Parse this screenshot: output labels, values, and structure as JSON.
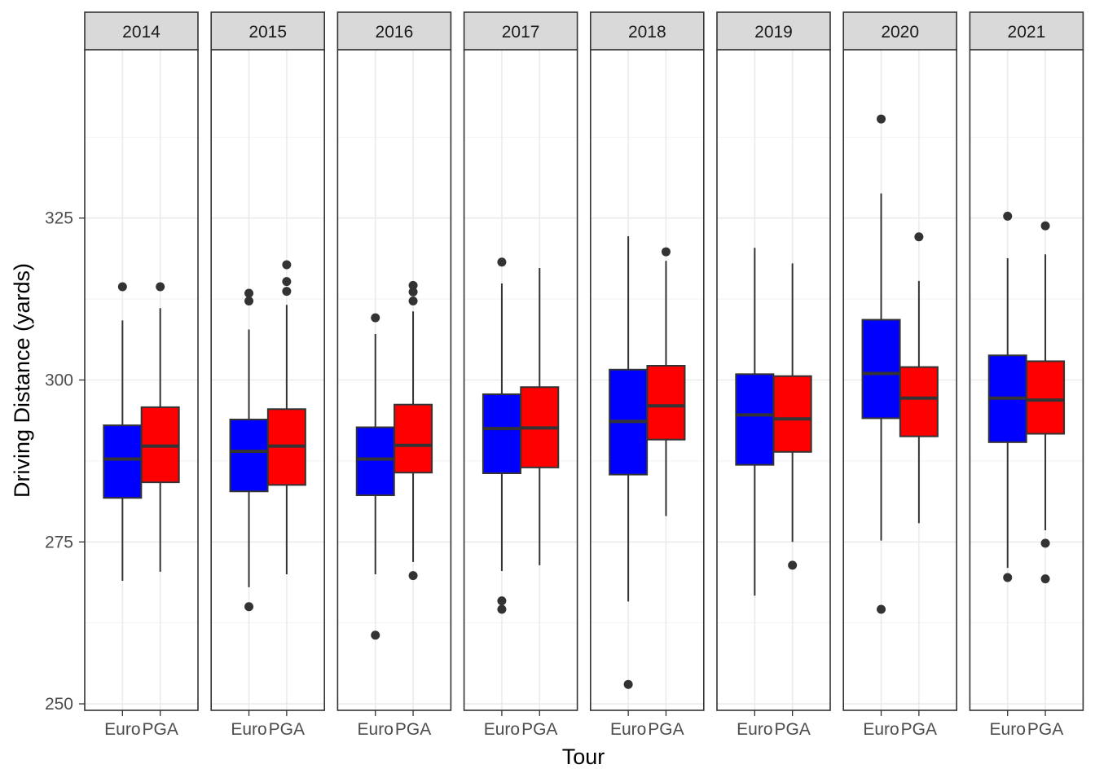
{
  "chart_data": {
    "type": "boxplot",
    "xlabel": "Tour",
    "ylabel": "Driving Distance (yards)",
    "y_ticks": [
      250,
      275,
      300,
      325
    ],
    "ylim": [
      249,
      351
    ],
    "grid": true,
    "categories": [
      "Euro",
      "PGA"
    ],
    "colors": {
      "Euro": "#0000ff",
      "PGA": "#ff0000"
    },
    "panels": [
      {
        "label": "2014",
        "boxes": [
          {
            "tour": "Euro",
            "min": 269,
            "q1": 281.8,
            "median": 287.8,
            "q3": 293.0,
            "max": 309.2,
            "outliers": [
              314.4
            ]
          },
          {
            "tour": "PGA",
            "min": 270.4,
            "q1": 284.2,
            "median": 289.8,
            "q3": 295.8,
            "max": 311.1,
            "outliers": [
              314.4
            ]
          }
        ]
      },
      {
        "label": "2015",
        "boxes": [
          {
            "tour": "Euro",
            "min": 268.0,
            "q1": 282.8,
            "median": 289.0,
            "q3": 293.9,
            "max": 307.8,
            "outliers": [
              313.4,
              312.2,
              265.0
            ]
          },
          {
            "tour": "PGA",
            "min": 270.0,
            "q1": 283.8,
            "median": 289.8,
            "q3": 295.5,
            "max": 311.6,
            "outliers": [
              317.8,
              315.2,
              313.7
            ]
          }
        ]
      },
      {
        "label": "2016",
        "boxes": [
          {
            "tour": "Euro",
            "min": 270.0,
            "q1": 282.2,
            "median": 287.8,
            "q3": 292.7,
            "max": 307.1,
            "outliers": [
              309.6,
              260.6
            ]
          },
          {
            "tour": "PGA",
            "min": 271.9,
            "q1": 285.7,
            "median": 289.9,
            "q3": 296.2,
            "max": 310.6,
            "outliers": [
              314.6,
              313.6,
              312.2,
              269.8
            ]
          }
        ]
      },
      {
        "label": "2017",
        "boxes": [
          {
            "tour": "Euro",
            "min": 270.5,
            "q1": 285.6,
            "median": 292.5,
            "q3": 297.8,
            "max": 314.9,
            "outliers": [
              318.2,
              265.9,
              264.6
            ]
          },
          {
            "tour": "PGA",
            "min": 271.4,
            "q1": 286.5,
            "median": 292.6,
            "q3": 298.9,
            "max": 317.3,
            "outliers": []
          }
        ]
      },
      {
        "label": "2018",
        "boxes": [
          {
            "tour": "Euro",
            "min": 265.8,
            "q1": 285.4,
            "median": 293.6,
            "q3": 301.6,
            "max": 322.2,
            "outliers": [
              253.0
            ]
          },
          {
            "tour": "PGA",
            "min": 279.0,
            "q1": 290.8,
            "median": 296.0,
            "q3": 302.2,
            "max": 318.4,
            "outliers": [
              319.8
            ]
          }
        ]
      },
      {
        "label": "2019",
        "boxes": [
          {
            "tour": "Euro",
            "min": 266.7,
            "q1": 286.9,
            "median": 294.6,
            "q3": 300.9,
            "max": 320.4,
            "outliers": []
          },
          {
            "tour": "PGA",
            "min": 275.0,
            "q1": 288.9,
            "median": 294.0,
            "q3": 300.6,
            "max": 318.0,
            "outliers": [
              271.4
            ]
          }
        ]
      },
      {
        "label": "2020",
        "boxes": [
          {
            "tour": "Euro",
            "min": 275.2,
            "q1": 294.1,
            "median": 301.0,
            "q3": 309.3,
            "max": 328.8,
            "outliers": [
              340.3,
              264.6
            ]
          },
          {
            "tour": "PGA",
            "min": 277.9,
            "q1": 291.3,
            "median": 297.2,
            "q3": 302.0,
            "max": 315.3,
            "outliers": [
              322.1
            ]
          }
        ]
      },
      {
        "label": "2021",
        "boxes": [
          {
            "tour": "Euro",
            "min": 271.0,
            "q1": 290.4,
            "median": 297.2,
            "q3": 303.8,
            "max": 318.8,
            "outliers": [
              325.3,
              269.5
            ]
          },
          {
            "tour": "PGA",
            "min": 276.8,
            "q1": 291.7,
            "median": 296.9,
            "q3": 302.9,
            "max": 319.4,
            "outliers": [
              323.8,
              274.8,
              269.3
            ]
          }
        ]
      }
    ]
  }
}
